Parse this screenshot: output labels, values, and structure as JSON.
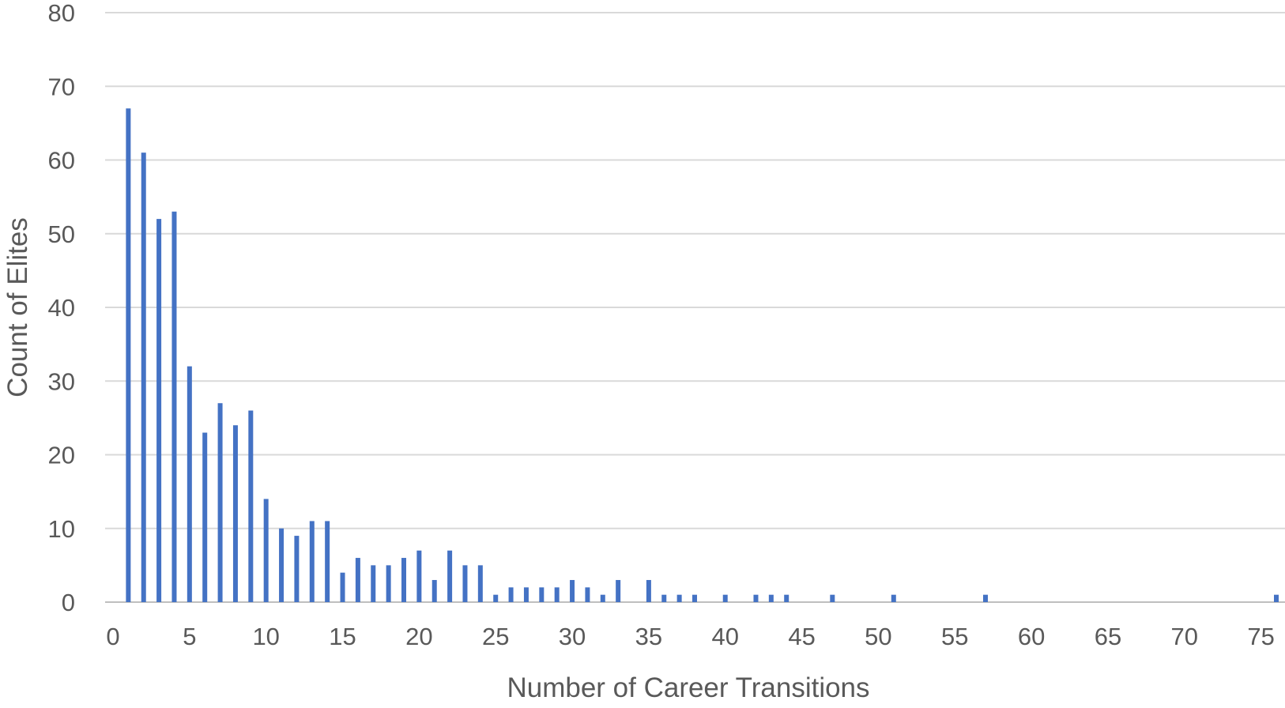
{
  "chart_data": {
    "type": "bar",
    "title": "",
    "xlabel": "Number of Career Transitions",
    "ylabel": "Count of Elites",
    "xlim": [
      0,
      76
    ],
    "ylim": [
      0,
      80
    ],
    "xticks": [
      0,
      5,
      10,
      15,
      20,
      25,
      30,
      35,
      40,
      45,
      50,
      55,
      60,
      65,
      70,
      75
    ],
    "yticks": [
      0,
      10,
      20,
      30,
      40,
      50,
      60,
      70,
      80
    ],
    "grid": "horizontal",
    "color": "#4472c4",
    "points": [
      {
        "x": 1,
        "y": 67
      },
      {
        "x": 2,
        "y": 61
      },
      {
        "x": 3,
        "y": 52
      },
      {
        "x": 4,
        "y": 53
      },
      {
        "x": 5,
        "y": 32
      },
      {
        "x": 6,
        "y": 23
      },
      {
        "x": 7,
        "y": 27
      },
      {
        "x": 8,
        "y": 24
      },
      {
        "x": 9,
        "y": 26
      },
      {
        "x": 10,
        "y": 14
      },
      {
        "x": 11,
        "y": 10
      },
      {
        "x": 12,
        "y": 9
      },
      {
        "x": 13,
        "y": 11
      },
      {
        "x": 14,
        "y": 11
      },
      {
        "x": 15,
        "y": 4
      },
      {
        "x": 16,
        "y": 6
      },
      {
        "x": 17,
        "y": 5
      },
      {
        "x": 18,
        "y": 5
      },
      {
        "x": 19,
        "y": 6
      },
      {
        "x": 20,
        "y": 7
      },
      {
        "x": 21,
        "y": 3
      },
      {
        "x": 22,
        "y": 7
      },
      {
        "x": 23,
        "y": 5
      },
      {
        "x": 24,
        "y": 5
      },
      {
        "x": 25,
        "y": 1
      },
      {
        "x": 26,
        "y": 2
      },
      {
        "x": 27,
        "y": 2
      },
      {
        "x": 28,
        "y": 2
      },
      {
        "x": 29,
        "y": 2
      },
      {
        "x": 30,
        "y": 3
      },
      {
        "x": 31,
        "y": 2
      },
      {
        "x": 32,
        "y": 1
      },
      {
        "x": 33,
        "y": 3
      },
      {
        "x": 35,
        "y": 3
      },
      {
        "x": 36,
        "y": 1
      },
      {
        "x": 37,
        "y": 1
      },
      {
        "x": 38,
        "y": 1
      },
      {
        "x": 40,
        "y": 1
      },
      {
        "x": 42,
        "y": 1
      },
      {
        "x": 43,
        "y": 1
      },
      {
        "x": 44,
        "y": 1
      },
      {
        "x": 47,
        "y": 1
      },
      {
        "x": 51,
        "y": 1
      },
      {
        "x": 57,
        "y": 1
      },
      {
        "x": 76,
        "y": 1
      }
    ]
  }
}
